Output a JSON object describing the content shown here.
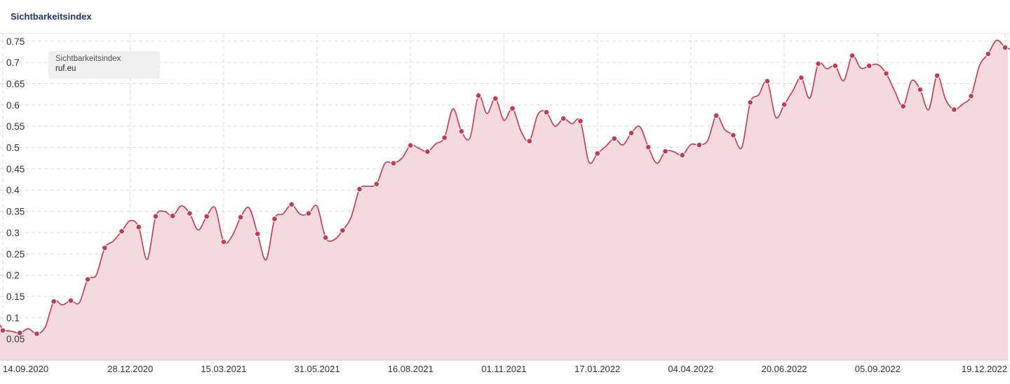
{
  "header": {
    "title": "Sichtbarkeitsindex"
  },
  "legend": {
    "metric": "Sichtbarkeitsindex",
    "domain": "ruf.eu"
  },
  "colors": {
    "line": "#c8384f",
    "fill": "#f3d7dc",
    "title": "#1c3768",
    "grid": "#d9d9d9"
  },
  "chart_data": {
    "type": "area",
    "title": "Sichtbarkeitsindex",
    "xlabel": "",
    "ylabel": "",
    "ylim": [
      0,
      0.77
    ],
    "grid": true,
    "legend": "top-left",
    "y_ticks": [
      "0.05",
      "0.1",
      "0.15",
      "0.2",
      "0.25",
      "0.3",
      "0.35",
      "0.4",
      "0.45",
      "0.5",
      "0.55",
      "0.6",
      "0.65",
      "0.7",
      "0.75"
    ],
    "x_ticks": [
      "14.09.2020",
      "28.12.2020",
      "15.03.2021",
      "31.05.2021",
      "16.08.2021",
      "01.11.2021",
      "17.01.2022",
      "04.04.2022",
      "20.06.2022",
      "05.09.2022",
      "19.12.2022"
    ],
    "series": [
      {
        "name": "ruf.eu",
        "x": [
          "14.09.2020",
          "21.09.2020",
          "28.09.2020",
          "05.10.2020",
          "12.10.2020",
          "19.10.2020",
          "26.10.2020",
          "02.11.2020",
          "09.11.2020",
          "16.11.2020",
          "23.11.2020",
          "30.11.2020",
          "07.12.2020",
          "14.12.2020",
          "21.12.2020",
          "28.12.2020",
          "04.01.2021",
          "11.01.2021",
          "18.01.2021",
          "25.01.2021",
          "01.02.2021",
          "08.02.2021",
          "15.02.2021",
          "22.02.2021",
          "01.03.2021",
          "08.03.2021",
          "15.03.2021",
          "22.03.2021",
          "29.03.2021",
          "05.04.2021",
          "12.04.2021",
          "19.04.2021",
          "26.04.2021",
          "03.05.2021",
          "10.05.2021",
          "17.05.2021",
          "24.05.2021",
          "31.05.2021",
          "07.06.2021",
          "14.06.2021",
          "21.06.2021",
          "28.06.2021",
          "05.07.2021",
          "12.07.2021",
          "19.07.2021",
          "26.07.2021",
          "02.08.2021",
          "09.08.2021",
          "16.08.2021",
          "23.08.2021",
          "30.08.2021",
          "06.09.2021",
          "13.09.2021",
          "20.09.2021",
          "27.09.2021",
          "04.10.2021",
          "11.10.2021",
          "18.10.2021",
          "25.10.2021",
          "01.11.2021",
          "08.11.2021",
          "15.11.2021",
          "22.11.2021",
          "29.11.2021",
          "06.12.2021",
          "13.12.2021",
          "20.12.2021",
          "27.12.2021",
          "03.01.2022",
          "10.01.2022",
          "17.01.2022",
          "24.01.2022",
          "31.01.2022",
          "07.02.2022",
          "14.02.2022",
          "21.02.2022",
          "28.02.2022",
          "07.03.2022",
          "14.03.2022",
          "21.03.2022",
          "28.03.2022",
          "04.04.2022",
          "11.04.2022",
          "18.04.2022",
          "25.04.2022",
          "02.05.2022",
          "09.05.2022",
          "16.05.2022",
          "23.05.2022",
          "30.05.2022",
          "06.06.2022",
          "13.06.2022",
          "20.06.2022",
          "27.06.2022",
          "04.07.2022",
          "11.07.2022",
          "18.07.2022",
          "25.07.2022",
          "01.08.2022",
          "08.08.2022",
          "15.08.2022",
          "22.08.2022",
          "29.08.2022",
          "05.09.2022",
          "12.09.2022",
          "19.09.2022",
          "26.09.2022",
          "03.10.2022",
          "10.10.2022",
          "17.10.2022",
          "24.10.2022",
          "31.10.2022",
          "07.11.2022",
          "14.11.2022",
          "21.11.2022",
          "28.11.2022",
          "05.12.2022",
          "12.12.2022",
          "19.12.2022"
        ],
        "values": [
          0.07,
          0.068,
          0.064,
          0.074,
          0.062,
          0.078,
          0.138,
          0.13,
          0.14,
          0.135,
          0.19,
          0.2,
          0.264,
          0.28,
          0.303,
          0.328,
          0.313,
          0.237,
          0.338,
          0.35,
          0.339,
          0.363,
          0.345,
          0.306,
          0.338,
          0.358,
          0.278,
          0.292,
          0.336,
          0.358,
          0.297,
          0.236,
          0.332,
          0.344,
          0.366,
          0.343,
          0.345,
          0.362,
          0.288,
          0.283,
          0.305,
          0.336,
          0.402,
          0.409,
          0.414,
          0.463,
          0.463,
          0.475,
          0.505,
          0.498,
          0.49,
          0.509,
          0.523,
          0.591,
          0.538,
          0.523,
          0.622,
          0.58,
          0.615,
          0.564,
          0.592,
          0.539,
          0.515,
          0.578,
          0.583,
          0.55,
          0.568,
          0.556,
          0.562,
          0.466,
          0.486,
          0.503,
          0.521,
          0.506,
          0.534,
          0.549,
          0.501,
          0.463,
          0.491,
          0.49,
          0.482,
          0.507,
          0.506,
          0.517,
          0.575,
          0.542,
          0.529,
          0.5,
          0.606,
          0.624,
          0.656,
          0.571,
          0.601,
          0.633,
          0.664,
          0.616,
          0.697,
          0.685,
          0.692,
          0.657,
          0.716,
          0.687,
          0.692,
          0.695,
          0.674,
          0.633,
          0.597,
          0.657,
          0.636,
          0.589,
          0.669,
          0.613,
          0.589,
          0.602,
          0.621,
          0.693,
          0.72,
          0.752,
          0.735
        ]
      }
    ]
  }
}
